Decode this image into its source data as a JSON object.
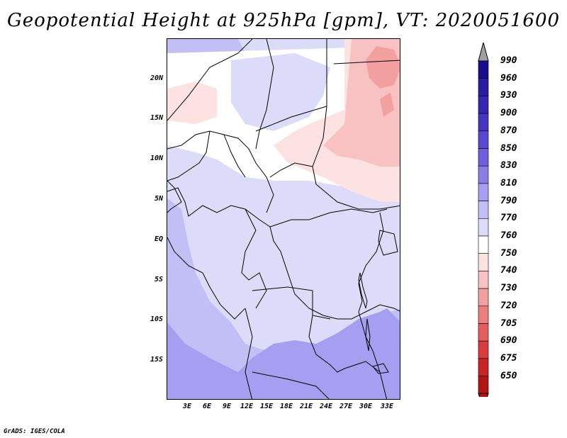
{
  "title": "Geopotential Height at 925hPa [gpm], VT: 2020051600",
  "footer": "GrADS: IGES/COLA",
  "map": {
    "y_ticks": [
      "20N",
      "15N",
      "10N",
      "5N",
      "EQ",
      "5S",
      "10S",
      "15S"
    ],
    "x_ticks": [
      "3E",
      "6E",
      "9E",
      "12E",
      "15E",
      "18E",
      "21E",
      "24E",
      "27E",
      "30E",
      "33E"
    ]
  },
  "colorbar": {
    "labels": [
      "990",
      "960",
      "930",
      "900",
      "870",
      "850",
      "830",
      "810",
      "790",
      "770",
      "760",
      "750",
      "740",
      "730",
      "720",
      "705",
      "690",
      "675",
      "650"
    ],
    "colors": [
      "#1a0a8c",
      "#2a1ba0",
      "#3527b0",
      "#4535c0",
      "#5a48d0",
      "#6e5fdc",
      "#8a7ee6",
      "#a69ef0",
      "#c2bef6",
      "#dcdcfa",
      "#ffffff",
      "#fde2e2",
      "#f8c2c2",
      "#f2a0a0",
      "#ec7e7e",
      "#e45c5c",
      "#d83c3c",
      "#c82424",
      "#b01414"
    ],
    "top_arrow_color": "#a0a0a0"
  },
  "colors": {
    "border": "#000000",
    "pink_light": "#fde2e2",
    "pink_mid": "#f8c2c2",
    "pink_dark": "#f2a0a0",
    "lav_light": "#dcdcfa",
    "lav_mid": "#c2bef6",
    "lav_dark": "#a69ef0"
  }
}
